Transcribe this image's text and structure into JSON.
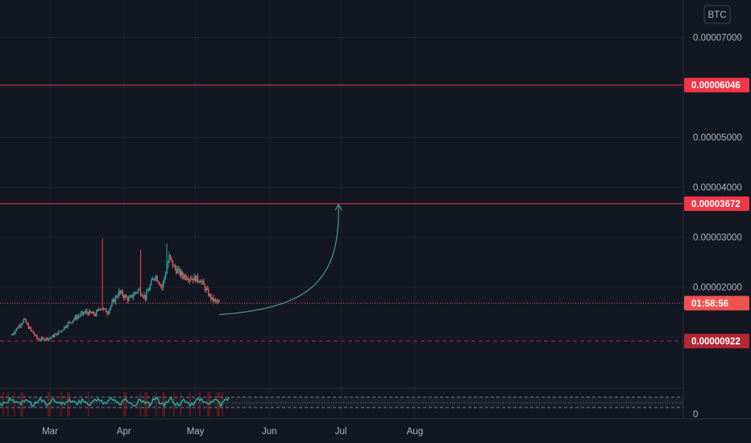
{
  "chart_data": {
    "type": "candlestick",
    "currency": "BTC",
    "y_ticks": [
      "0.00007000",
      "0.00005000",
      "0.00004000",
      "0.00003000",
      "0.00002000"
    ],
    "y_tick_values": [
      7e-05,
      5e-05,
      4e-05,
      3e-05,
      2e-05
    ],
    "x_ticks": [
      "Mar",
      "Apr",
      "May",
      "Jun",
      "Jul",
      "Aug"
    ],
    "price_lines": [
      {
        "label": "0.00006046",
        "value": 6.046e-05,
        "color": "#f23645",
        "style": "solid"
      },
      {
        "label": "0.00003672",
        "value": 3.672e-05,
        "color": "#f23645",
        "style": "solid"
      },
      {
        "label": "0.00000922",
        "value": 9.22e-06,
        "color": "#b22833",
        "style": "dashed"
      }
    ],
    "countdown": {
      "label": "01:58:56",
      "value": 1.68e-05
    },
    "indicator_zero_label": "0",
    "price_series": {
      "start": "2021-02-13",
      "end": "2021-05-11",
      "anchors": [
        [
          "2021-02-13",
          1.05e-05
        ],
        [
          "2021-02-18",
          1.35e-05
        ],
        [
          "2021-02-20",
          1.2e-05
        ],
        [
          "2021-02-24",
          9.5e-06
        ],
        [
          "2021-03-01",
          9.8e-06
        ],
        [
          "2021-03-05",
          1.1e-05
        ],
        [
          "2021-03-08",
          1.25e-05
        ],
        [
          "2021-03-12",
          1.4e-05
        ],
        [
          "2021-03-16",
          1.5e-05
        ],
        [
          "2021-03-20",
          1.45e-05
        ],
        [
          "2021-03-22",
          1.6e-05
        ],
        [
          "2021-03-25",
          1.5e-05
        ],
        [
          "2021-03-28",
          1.75e-05
        ],
        [
          "2021-03-30",
          1.9e-05
        ],
        [
          "2021-04-03",
          1.75e-05
        ],
        [
          "2021-04-07",
          1.95e-05
        ],
        [
          "2021-04-10",
          1.8e-05
        ],
        [
          "2021-04-14",
          2.25e-05
        ],
        [
          "2021-04-17",
          2e-05
        ],
        [
          "2021-04-20",
          2.6e-05
        ],
        [
          "2021-04-22",
          2.4e-05
        ],
        [
          "2021-04-25",
          2.25e-05
        ],
        [
          "2021-04-28",
          2.2e-05
        ],
        [
          "2021-05-03",
          2.15e-05
        ],
        [
          "2021-05-06",
          1.9e-05
        ],
        [
          "2021-05-08",
          1.75e-05
        ],
        [
          "2021-05-11",
          1.68e-05
        ]
      ],
      "spikes": [
        {
          "date": "2021-03-23",
          "high": 2.97e-05
        },
        {
          "date": "2021-04-19",
          "high": 2.87e-05
        },
        {
          "date": "2021-04-08",
          "high": 2.75e-05
        }
      ]
    },
    "annotation_arrow": {
      "from": [
        "2021-05-11",
        1.45e-05
      ],
      "to": [
        "2021-06-30",
        3.67e-05
      ],
      "color": "#4a9d8f"
    }
  }
}
